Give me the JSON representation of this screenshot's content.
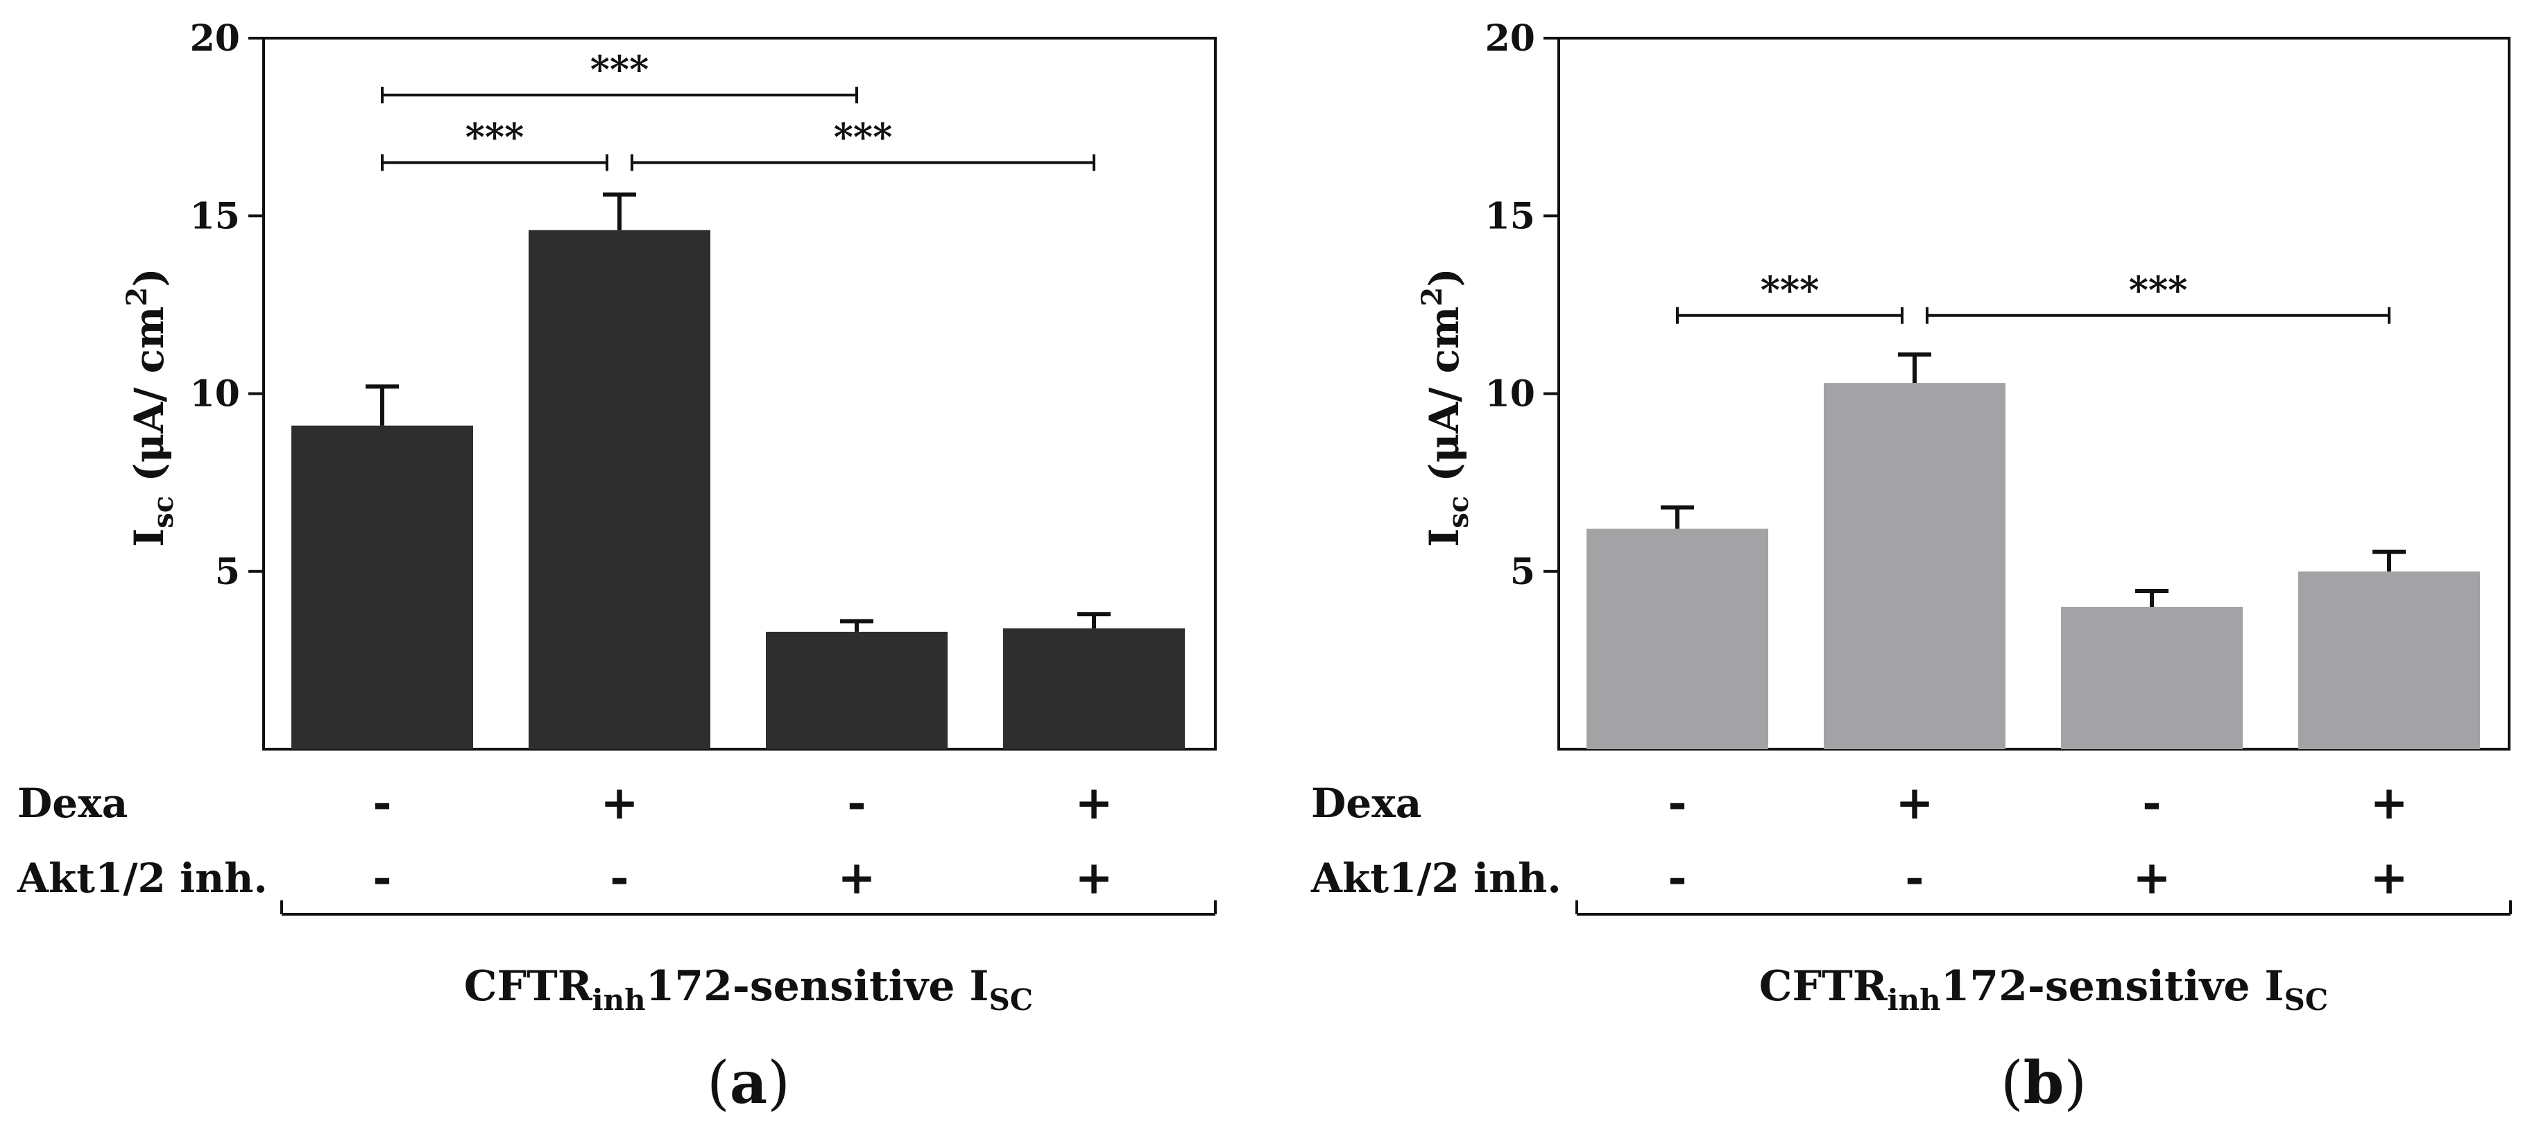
{
  "chart_data": [
    {
      "type": "bar",
      "panel_label": "a",
      "categories": [
        "- / -",
        "+ / -",
        "- / +",
        "+ / +"
      ],
      "values": [
        9.1,
        14.6,
        3.3,
        3.4
      ],
      "errors": [
        1.1,
        1.0,
        0.3,
        0.4
      ],
      "bar_color": "#2e2e2e",
      "ylabel": {
        "main": "I",
        "sub": "sc",
        "unit": " (μA/ cm",
        "sup": "2",
        "close": ")"
      },
      "ylim": [
        0,
        20
      ],
      "yticks": [
        "5",
        "10",
        "15",
        "20"
      ],
      "ytick_values": [
        5,
        10,
        15,
        20
      ],
      "conditions": [
        {
          "label": "Dexa",
          "values": [
            "-",
            "+",
            "-",
            "+"
          ]
        },
        {
          "label": "Akt1/2 inh.",
          "values": [
            "-",
            "-",
            "+",
            "+"
          ]
        }
      ],
      "xlabel": {
        "main": "CFTR",
        "sub": "inh",
        "mid": "172-sensitive I",
        "sub2": "SC"
      },
      "significance": [
        {
          "from": 0,
          "to": 2,
          "y": 18.4,
          "text": "***"
        },
        {
          "from": 0,
          "to": 1,
          "y": 16.5,
          "text": "***"
        },
        {
          "from": 1,
          "to": 3,
          "y": 16.5,
          "text": "***"
        }
      ]
    },
    {
      "type": "bar",
      "panel_label": "b",
      "categories": [
        "- / -",
        "+ / -",
        "- / +",
        "+ / +"
      ],
      "values": [
        6.2,
        10.3,
        4.0,
        5.0
      ],
      "errors": [
        0.6,
        0.8,
        0.45,
        0.55
      ],
      "bar_color": "#a3a3a6",
      "ylabel": {
        "main": "I",
        "sub": "sc",
        "unit": " (μA/ cm",
        "sup": "2",
        "close": ")"
      },
      "ylim": [
        0,
        20
      ],
      "yticks": [
        "5",
        "10",
        "15",
        "20"
      ],
      "ytick_values": [
        5,
        10,
        15,
        20
      ],
      "conditions": [
        {
          "label": "Dexa",
          "values": [
            "-",
            "+",
            "-",
            "+"
          ]
        },
        {
          "label": "Akt1/2 inh.",
          "values": [
            "-",
            "-",
            "+",
            "+"
          ]
        }
      ],
      "xlabel": {
        "main": "CFTR",
        "sub": "inh",
        "mid": "172-sensitive I",
        "sub2": "SC"
      },
      "significance": [
        {
          "from": 0,
          "to": 1,
          "y": 12.2,
          "text": "***"
        },
        {
          "from": 1,
          "to": 3,
          "y": 12.2,
          "text": "***"
        }
      ]
    }
  ]
}
